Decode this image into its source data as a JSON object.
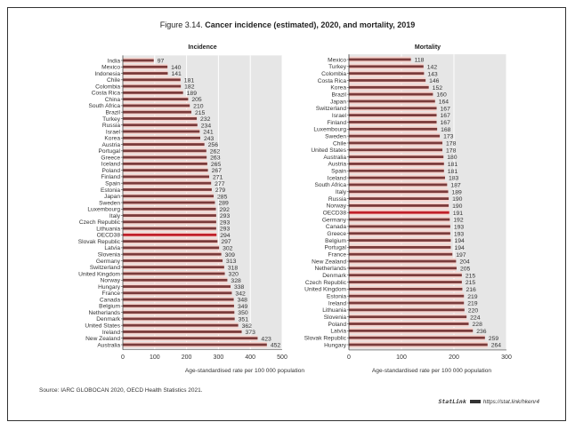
{
  "title": {
    "prefix": "Figure 3.14.",
    "main": "Cancer incidence (estimated), 2020, and mortality, 2019"
  },
  "source": "Source: IARC GLOBOCAN 2020, OECD Health Statistics 2021.",
  "statlink": {
    "label": "StatLink",
    "url": "https://stat.link/hkenr4"
  },
  "colors": {
    "bar": "#7a3b3b",
    "bar_halo": "#f6d3cd",
    "highlight": "#c0202a",
    "plot_bg": "#e6e6e6"
  },
  "chart_data": [
    {
      "type": "bar",
      "orientation": "horizontal",
      "title": "Incidence",
      "xlabel": "Age-standardised rate per 100 000 population",
      "xlim": [
        0,
        500
      ],
      "xticks": [
        0,
        100,
        200,
        300,
        400,
        500
      ],
      "highlight": "OECD38",
      "categories": [
        "India",
        "Mexico",
        "Indonesia",
        "Chile",
        "Colombia",
        "Costa Rica",
        "China",
        "South Africa",
        "Brazil",
        "Turkey",
        "Russia",
        "Israel",
        "Korea",
        "Austria",
        "Portugal",
        "Greece",
        "Iceland",
        "Poland",
        "Finland",
        "Spain",
        "Estonia",
        "Japan",
        "Sweden",
        "Luxembourg",
        "Italy",
        "Czech Republic",
        "Lithuania",
        "OECD38",
        "Slovak Republic",
        "Latvia",
        "Slovenia",
        "Germany",
        "Switzerland",
        "United Kingdom",
        "Norway",
        "Hungary",
        "France",
        "Canada",
        "Belgium",
        "Netherlands",
        "Denmark",
        "United States",
        "Ireland",
        "New Zealand",
        "Australia"
      ],
      "values": [
        97,
        140,
        141,
        181,
        182,
        189,
        205,
        210,
        215,
        232,
        234,
        241,
        243,
        256,
        262,
        263,
        265,
        267,
        271,
        277,
        279,
        285,
        289,
        292,
        293,
        293,
        293,
        294,
        297,
        302,
        309,
        313,
        318,
        320,
        328,
        338,
        342,
        348,
        349,
        350,
        351,
        362,
        373,
        423,
        452
      ]
    },
    {
      "type": "bar",
      "orientation": "horizontal",
      "title": "Mortality",
      "xlabel": "Age-standardised rate per 100 000 population",
      "xlim": [
        0,
        300
      ],
      "xticks": [
        0,
        100,
        200,
        300
      ],
      "highlight": "OECD38",
      "categories": [
        "Mexico",
        "Turkey",
        "Colombia",
        "Costa Rica",
        "Korea",
        "Brazil",
        "Japan",
        "Switzerland",
        "Israel",
        "Finland",
        "Luxembourg",
        "Sweden",
        "Chile",
        "United States",
        "Australia",
        "Austria",
        "Spain",
        "Iceland",
        "South Africa",
        "Italy",
        "Russia",
        "Norway",
        "OECD38",
        "Germany",
        "Canada",
        "Greece",
        "Belgium",
        "Portugal",
        "France",
        "New Zealand",
        "Netherlands",
        "Denmark",
        "Czech Republic",
        "United Kingdom",
        "Estonia",
        "Ireland",
        "Lithuania",
        "Slovenia",
        "Poland",
        "Latvia",
        "Slovak Republic",
        "Hungary"
      ],
      "values": [
        118,
        142,
        143,
        146,
        152,
        160,
        164,
        167,
        167,
        167,
        168,
        173,
        178,
        178,
        180,
        181,
        181,
        183,
        187,
        189,
        190,
        190,
        191,
        192,
        193,
        193,
        194,
        194,
        197,
        204,
        205,
        215,
        215,
        216,
        219,
        219,
        220,
        224,
        228,
        236,
        259,
        264
      ]
    }
  ]
}
